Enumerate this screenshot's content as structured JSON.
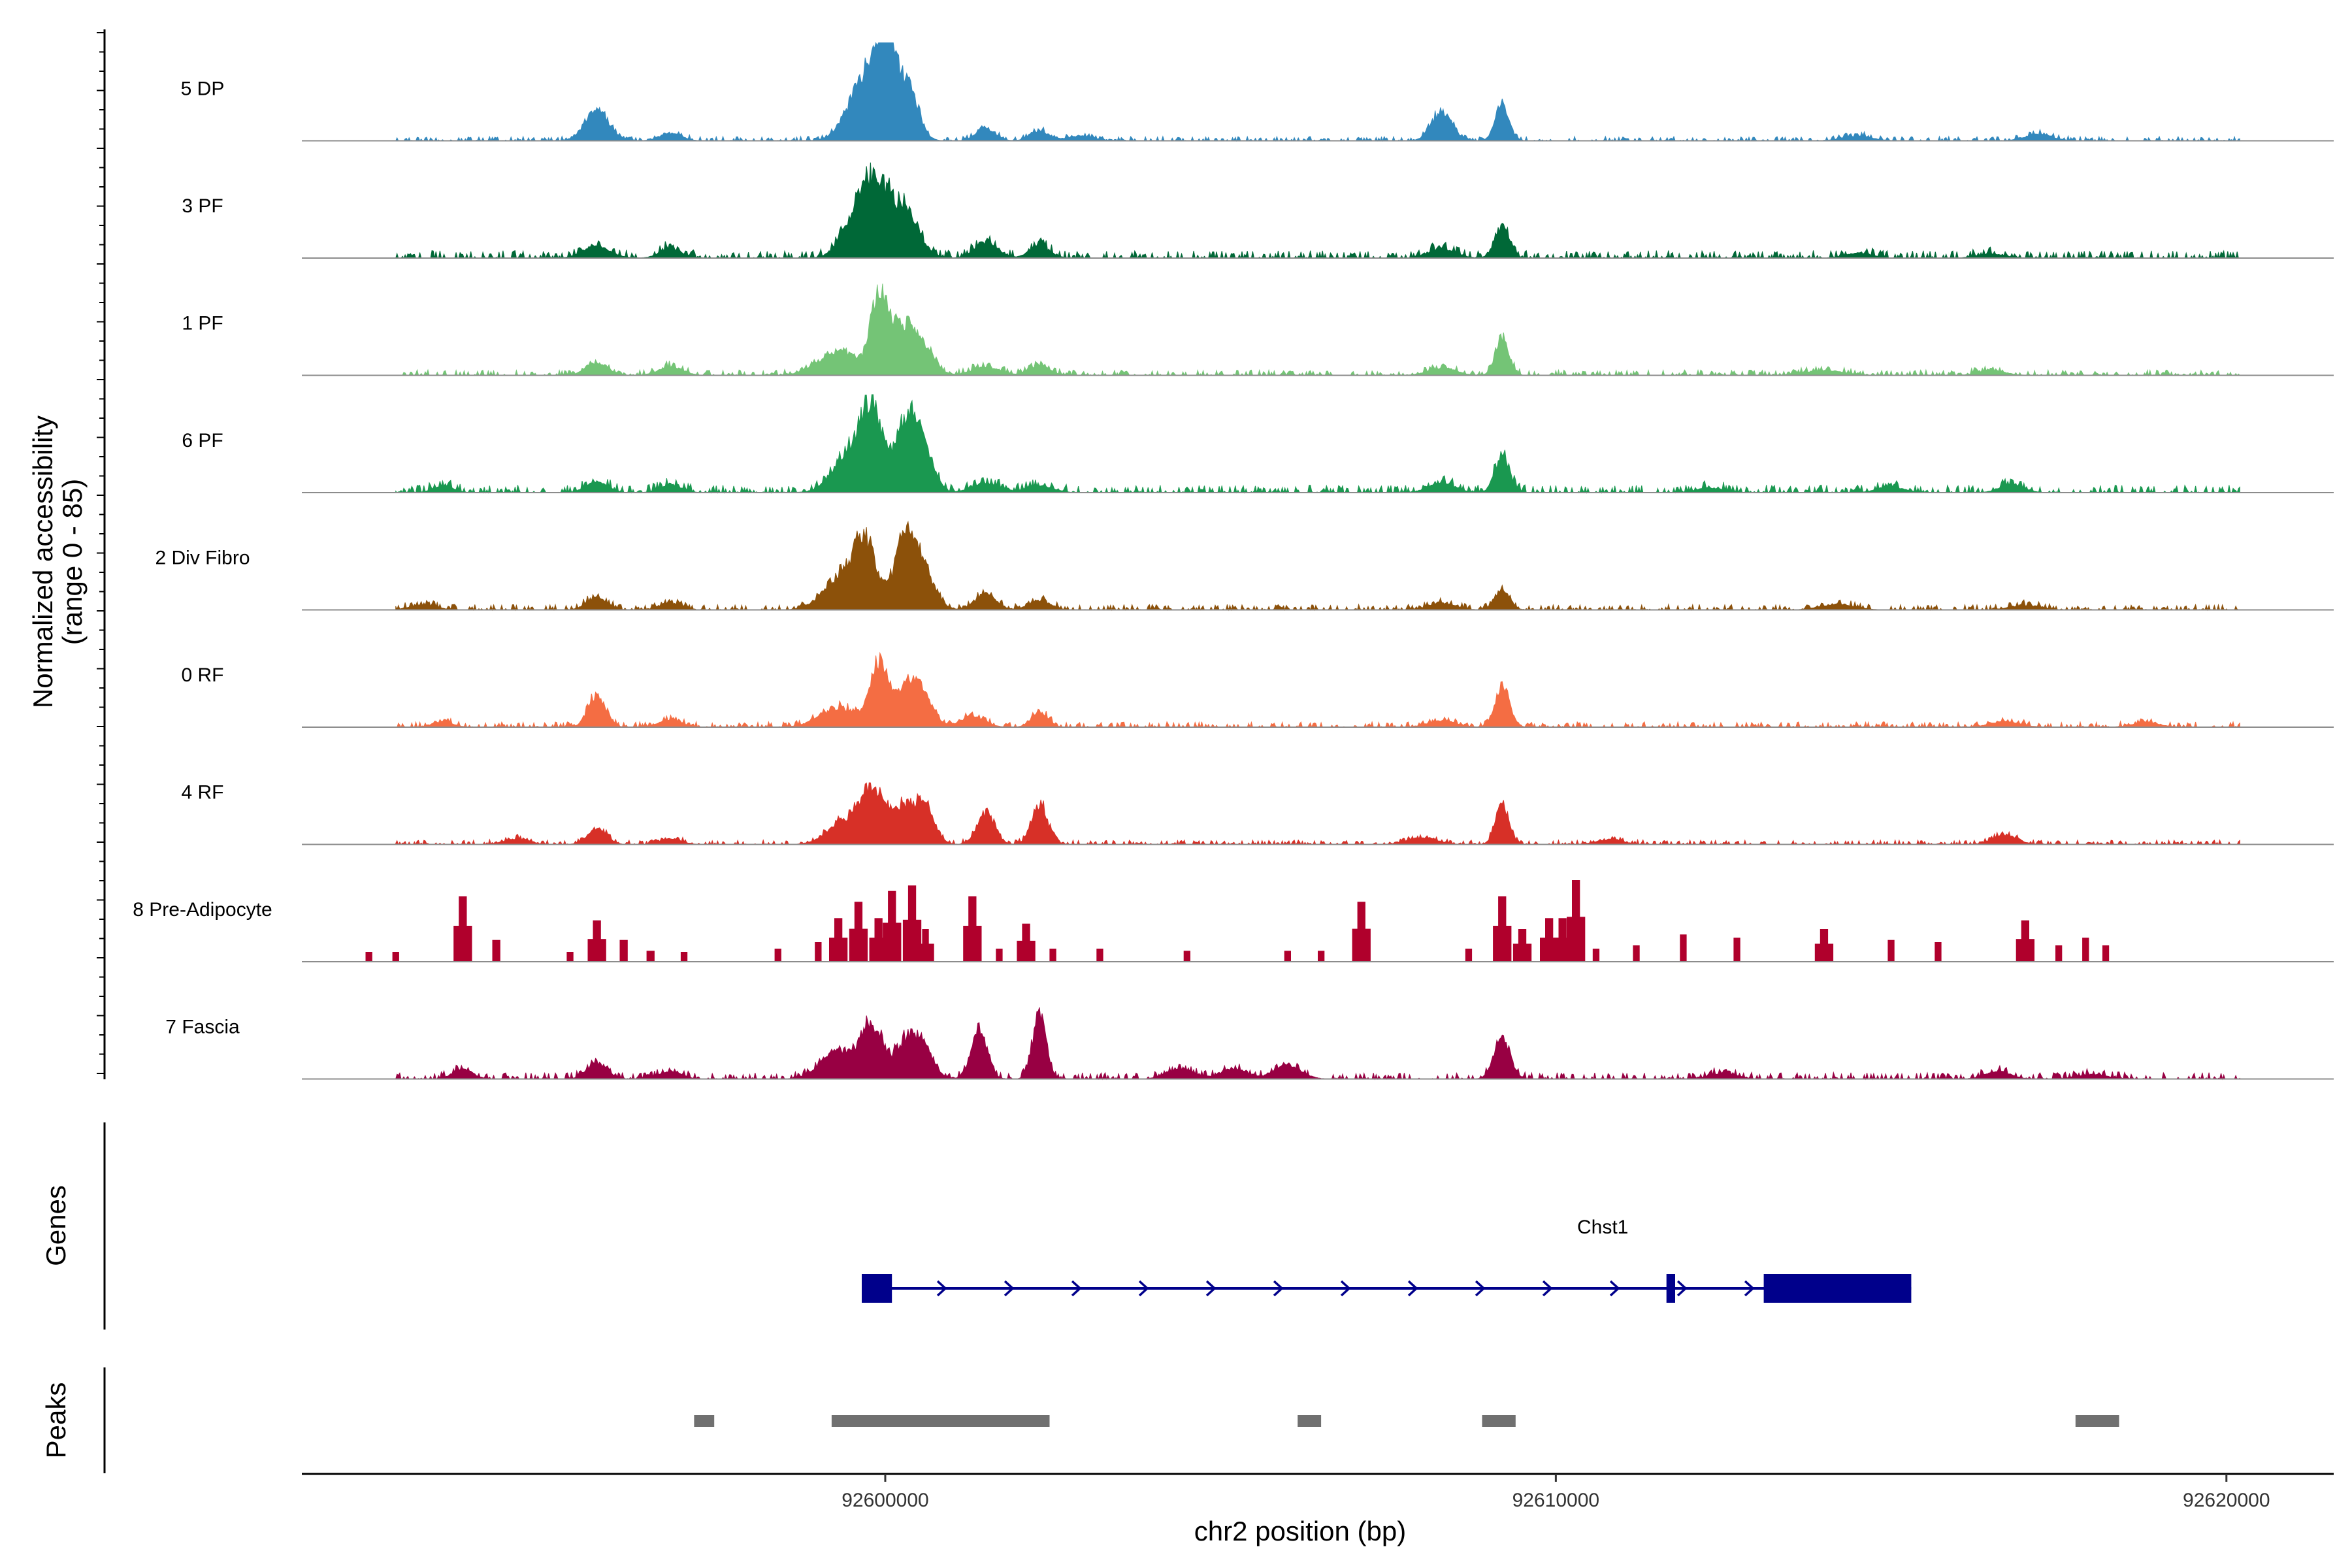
{
  "chart_data": {
    "type": "area",
    "title": "",
    "xlabel": "chr2 position (bp)",
    "ylabel": "Normalized accessibility",
    "ylabel_sub": "(range 0 - 85)",
    "xlim": [
      92591300,
      92621600
    ],
    "ylim": [
      0,
      85
    ],
    "xticks": [
      92600000,
      92610000,
      92620000
    ],
    "panel_labels": {
      "genes": "Genes",
      "peaks": "Peaks"
    },
    "series": [
      {
        "name": "5 DP",
        "color": "#3288BD",
        "baseline": 4,
        "peaks": [
          [
            92595700,
            32,
            180
          ],
          [
            92596800,
            8,
            160
          ],
          [
            92599700,
            62,
            250
          ],
          [
            92600000,
            90,
            150
          ],
          [
            92600350,
            52,
            150
          ],
          [
            92601500,
            13,
            140
          ],
          [
            92602300,
            10,
            140
          ],
          [
            92602900,
            5,
            200
          ],
          [
            92608300,
            31,
            150
          ],
          [
            92609200,
            39,
            100
          ],
          [
            92614500,
            5,
            220
          ],
          [
            92617200,
            7,
            200
          ]
        ]
      },
      {
        "name": "3 PF",
        "color": "#006837",
        "baseline": 7,
        "peaks": [
          [
            92595700,
            12,
            200
          ],
          [
            92596800,
            10,
            160
          ],
          [
            92599600,
            50,
            220
          ],
          [
            92599900,
            58,
            180
          ],
          [
            92600300,
            48,
            200
          ],
          [
            92601500,
            17,
            170
          ],
          [
            92602300,
            13,
            150
          ],
          [
            92608300,
            10,
            200
          ],
          [
            92609200,
            32,
            110
          ],
          [
            92614500,
            5,
            200
          ],
          [
            92616500,
            4,
            220
          ]
        ]
      },
      {
        "name": "1 PF",
        "color": "#74C476",
        "baseline": 5,
        "peaks": [
          [
            92595700,
            13,
            160
          ],
          [
            92596800,
            9,
            180
          ],
          [
            92599300,
            25,
            300
          ],
          [
            92599900,
            75,
            120
          ],
          [
            92600200,
            50,
            180
          ],
          [
            92600550,
            30,
            170
          ],
          [
            92601500,
            9,
            200
          ],
          [
            92602300,
            11,
            150
          ],
          [
            92608300,
            8,
            200
          ],
          [
            92609200,
            40,
            100
          ],
          [
            92614000,
            5,
            300
          ],
          [
            92616500,
            5,
            200
          ]
        ]
      },
      {
        "name": "6 PF",
        "color": "#1A9850",
        "baseline": 7,
        "peaks": [
          [
            92593400,
            7,
            150
          ],
          [
            92595700,
            12,
            160
          ],
          [
            92596800,
            8,
            160
          ],
          [
            92599500,
            40,
            260
          ],
          [
            92599800,
            73,
            160
          ],
          [
            92600300,
            62,
            170
          ],
          [
            92600550,
            44,
            160
          ],
          [
            92601500,
            10,
            200
          ],
          [
            92602300,
            7,
            200
          ],
          [
            92608300,
            10,
            200
          ],
          [
            92609200,
            37,
            110
          ],
          [
            92612300,
            5,
            200
          ],
          [
            92615000,
            6,
            200
          ],
          [
            92616800,
            8,
            180
          ]
        ]
      },
      {
        "name": "2 Div Fibro",
        "color": "#8C510A",
        "baseline": 5,
        "peaks": [
          [
            92593100,
            5,
            200
          ],
          [
            92595700,
            13,
            150
          ],
          [
            92596800,
            7,
            160
          ],
          [
            92599300,
            30,
            250
          ],
          [
            92599700,
            68,
            180
          ],
          [
            92600300,
            73,
            150
          ],
          [
            92600550,
            40,
            180
          ],
          [
            92601500,
            17,
            150
          ],
          [
            92602300,
            10,
            160
          ],
          [
            92608300,
            7,
            200
          ],
          [
            92609200,
            20,
            110
          ],
          [
            92614200,
            6,
            250
          ],
          [
            92617000,
            5,
            220
          ]
        ]
      },
      {
        "name": "0 RF",
        "color": "#F46D43",
        "baseline": 5,
        "peaks": [
          [
            92593400,
            6,
            150
          ],
          [
            92595700,
            33,
            130
          ],
          [
            92596800,
            8,
            160
          ],
          [
            92599300,
            20,
            280
          ],
          [
            92599900,
            65,
            130
          ],
          [
            92600300,
            35,
            160
          ],
          [
            92600550,
            32,
            160
          ],
          [
            92601300,
            11,
            180
          ],
          [
            92602300,
            16,
            120
          ],
          [
            92608300,
            7,
            200
          ],
          [
            92609200,
            42,
            110
          ],
          [
            92616700,
            6,
            220
          ],
          [
            92618800,
            5,
            200
          ]
        ]
      },
      {
        "name": "4 RF",
        "color": "#D73027",
        "baseline": 4,
        "peaks": [
          [
            92594500,
            6,
            180
          ],
          [
            92595700,
            17,
            140
          ],
          [
            92596800,
            6,
            160
          ],
          [
            92599400,
            25,
            250
          ],
          [
            92599800,
            55,
            160
          ],
          [
            92600200,
            35,
            150
          ],
          [
            92600550,
            44,
            160
          ],
          [
            92601500,
            33,
            130
          ],
          [
            92602300,
            42,
            120
          ],
          [
            92608000,
            7,
            220
          ],
          [
            92609200,
            40,
            100
          ],
          [
            92610800,
            5,
            200
          ],
          [
            92616700,
            10,
            180
          ]
        ]
      },
      {
        "name": "8 Pre-Adipocyte",
        "color": "#B0002C",
        "baseline": 0,
        "peaks": [
          [
            92592300,
            9,
            50
          ],
          [
            92592700,
            9,
            50
          ],
          [
            92593700,
            60,
            60
          ],
          [
            92594200,
            20,
            60
          ],
          [
            92595300,
            9,
            50
          ],
          [
            92595700,
            38,
            60
          ],
          [
            92596100,
            20,
            60
          ],
          [
            92596500,
            10,
            60
          ],
          [
            92597000,
            9,
            50
          ],
          [
            92598400,
            12,
            50
          ],
          [
            92599000,
            18,
            50
          ],
          [
            92599300,
            40,
            60
          ],
          [
            92599600,
            55,
            60
          ],
          [
            92599900,
            40,
            60
          ],
          [
            92600100,
            65,
            60
          ],
          [
            92600400,
            70,
            60
          ],
          [
            92600600,
            30,
            50
          ],
          [
            92601300,
            60,
            60
          ],
          [
            92601700,
            12,
            50
          ],
          [
            92602100,
            35,
            60
          ],
          [
            92602500,
            12,
            50
          ],
          [
            92603200,
            12,
            50
          ],
          [
            92604500,
            10,
            50
          ],
          [
            92606000,
            10,
            50
          ],
          [
            92606500,
            10,
            50
          ],
          [
            92607100,
            55,
            60
          ],
          [
            92608700,
            12,
            50
          ],
          [
            92609200,
            60,
            60
          ],
          [
            92609500,
            30,
            60
          ],
          [
            92609900,
            40,
            60
          ],
          [
            92610100,
            40,
            60
          ],
          [
            92610300,
            75,
            60
          ],
          [
            92610600,
            12,
            50
          ],
          [
            92611200,
            15,
            50
          ],
          [
            92611900,
            25,
            50
          ],
          [
            92612700,
            22,
            50
          ],
          [
            92614000,
            30,
            60
          ],
          [
            92615000,
            20,
            50
          ],
          [
            92615700,
            18,
            50
          ],
          [
            92617000,
            38,
            60
          ],
          [
            92617500,
            15,
            50
          ],
          [
            92617900,
            22,
            50
          ],
          [
            92618200,
            15,
            50
          ]
        ]
      },
      {
        "name": "7 Fascia",
        "color": "#980043",
        "baseline": 6,
        "peaks": [
          [
            92593700,
            10,
            150
          ],
          [
            92595700,
            16,
            150
          ],
          [
            92596800,
            8,
            160
          ],
          [
            92599300,
            30,
            250
          ],
          [
            92599800,
            55,
            150
          ],
          [
            92600300,
            35,
            170
          ],
          [
            92600550,
            30,
            160
          ],
          [
            92601400,
            52,
            120
          ],
          [
            92602300,
            68,
            100
          ],
          [
            92604400,
            10,
            200
          ],
          [
            92605200,
            10,
            200
          ],
          [
            92606000,
            14,
            200
          ],
          [
            92609200,
            42,
            120
          ],
          [
            92612500,
            6,
            200
          ],
          [
            92616600,
            8,
            180
          ],
          [
            92618000,
            5,
            220
          ]
        ]
      }
    ],
    "genes": [
      {
        "name": "Chst1",
        "color": "#00008B",
        "start": 92599650,
        "end": 92615300,
        "strand": "+",
        "exons": [
          [
            92599650,
            92600100
          ],
          [
            92611650,
            92611780
          ],
          [
            92613100,
            92615300
          ]
        ]
      }
    ],
    "peaks": {
      "color": "#707070",
      "ranges": [
        [
          92597150,
          92597450
        ],
        [
          92599200,
          92602450
        ],
        [
          92606150,
          92606500
        ],
        [
          92608900,
          92609400
        ],
        [
          92617750,
          92618400
        ]
      ]
    }
  }
}
